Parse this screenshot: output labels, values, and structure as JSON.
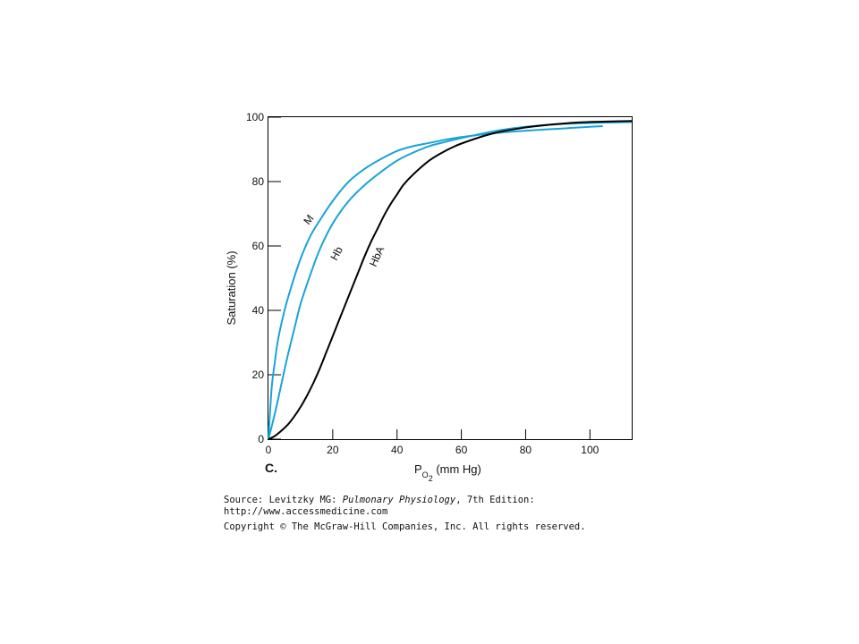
{
  "chart_data": {
    "type": "line",
    "panel_label": "C.",
    "xlabel": {
      "main": "P",
      "sub": "O",
      "subsub": "2",
      "unit": " (mm Hg)"
    },
    "ylabel": "Saturation (%)",
    "xlim": [
      0,
      113
    ],
    "ylim": [
      0,
      100
    ],
    "x_ticks": [
      "0",
      "20",
      "40",
      "60",
      "80",
      "100"
    ],
    "y_ticks": [
      "0",
      "20",
      "40",
      "60",
      "80",
      "100"
    ],
    "grid": false,
    "colors": {
      "M": "#1aa3d9",
      "Hb": "#1aa3d9",
      "HbA": "#000000"
    },
    "series": [
      {
        "name": "M",
        "x": [
          0,
          1,
          2,
          3,
          5,
          7,
          10,
          13,
          16,
          20,
          25,
          30,
          35,
          40,
          45,
          50,
          55,
          60,
          70,
          80,
          90,
          100,
          104
        ],
        "y": [
          0,
          16,
          24,
          31,
          40,
          47,
          56,
          63,
          68,
          74,
          80,
          84,
          87,
          89.5,
          91,
          92,
          93,
          93.8,
          95,
          95.8,
          96.4,
          97,
          97.2
        ]
      },
      {
        "name": "Hb",
        "x": [
          0,
          2,
          4,
          6,
          8,
          10,
          13,
          16,
          20,
          25,
          30,
          35,
          40,
          45,
          50,
          55,
          60,
          70,
          80,
          90,
          100,
          113
        ],
        "y": [
          0,
          8,
          17,
          26,
          34,
          42,
          51,
          59,
          67,
          74,
          79,
          83,
          86.5,
          89,
          91,
          92.3,
          93.5,
          95.6,
          97,
          97.8,
          98.2,
          98.5
        ]
      },
      {
        "name": "HbA",
        "x": [
          0,
          2,
          4,
          6,
          8,
          10,
          12,
          14,
          16,
          18,
          20,
          22,
          24,
          26,
          28,
          30,
          32,
          34,
          36,
          38,
          40,
          42,
          45,
          50,
          55,
          60,
          70,
          80,
          90,
          100,
          113
        ],
        "y": [
          0,
          1,
          2.6,
          4.5,
          7,
          10,
          13.5,
          17.5,
          22,
          27,
          32,
          37,
          42,
          47,
          52,
          57,
          61.5,
          65.5,
          69.5,
          73,
          76,
          79,
          82.2,
          86.5,
          89.5,
          91.8,
          95,
          96.8,
          97.9,
          98.5,
          98.8
        ]
      }
    ]
  },
  "caption": {
    "source_prefix": "Source: Levitzky MG: ",
    "source_title": "Pulmonary Physiology",
    "source_suffix": ", 7th Edition:",
    "url": "http://www.accessmedicine.com",
    "copyright": "Copyright © The McGraw-Hill Companies, Inc. All rights reserved."
  }
}
